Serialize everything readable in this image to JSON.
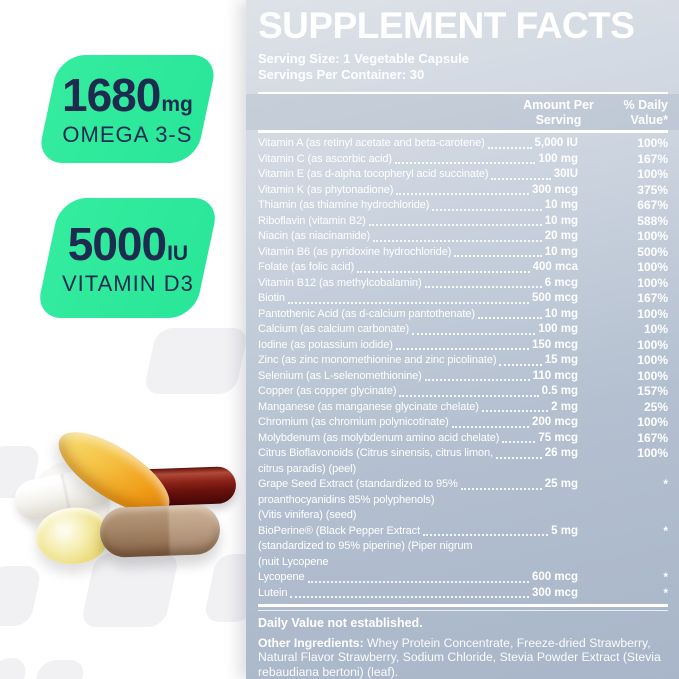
{
  "badges": [
    {
      "value": "1680",
      "unit": "mg",
      "label": "OMEGA 3-S"
    },
    {
      "value": "5000",
      "unit": "IU",
      "label": "VITAMIN D3"
    }
  ],
  "panel": {
    "title": "SUPPLEMENT FACTS",
    "serving_size": "Serving Size: 1 Vegetable Capsule",
    "servings_per_container": "Servings Per Container: 30",
    "columns": {
      "amount": "Amount Per Serving",
      "daily": "% Daily Value*"
    },
    "rows": [
      {
        "name": "Vitamin A (as retinyl acetate and beta-carotene)",
        "amount": "5,000 IU",
        "pct": "100%"
      },
      {
        "name": "Vitamin C (as ascorbic acid)",
        "amount": "100 mg",
        "pct": "167%"
      },
      {
        "name": "Vitamin E (as d-alpha tocopheryl acid succinate)",
        "amount": "30IU",
        "pct": "100%"
      },
      {
        "name": "Vitamin K (as phytonadione)",
        "amount": "300 mcg",
        "pct": "375%"
      },
      {
        "name": "Thiamin (as thiamine hydrochloride)",
        "amount": "10 mg",
        "pct": "667%"
      },
      {
        "name": "Riboflavin (vitamin B2)",
        "amount": "10 mg",
        "pct": "588%"
      },
      {
        "name": "Niacin (as niacinamide)",
        "amount": "20 mg",
        "pct": "100%"
      },
      {
        "name": "Vitamin B6 (as pyridoxine hydrochloride)",
        "amount": "10 mg",
        "pct": "500%"
      },
      {
        "name": "Folate (as folic acid)",
        "amount": "400 mca",
        "pct": "100%"
      },
      {
        "name": "Vitamin B12 (as methylcobalamin)",
        "amount": "6 mcg",
        "pct": "100%"
      },
      {
        "name": "Biotin",
        "amount": "500 mcg",
        "pct": "167%"
      },
      {
        "name": "Pantothenic Acid (as d-calcium pantothenate)",
        "amount": "10 mg",
        "pct": "100%"
      },
      {
        "name": "Calcium (as calcium carbonate)",
        "amount": "100 mg",
        "pct": "10%"
      },
      {
        "name": "Iodine (as potassium iodide)",
        "amount": "150 mcg",
        "pct": "100%"
      },
      {
        "name": "Zinc (as zinc monomethionine and zinc picolinate)",
        "amount": "15 mg",
        "pct": "100%"
      },
      {
        "name": "Selenium (as L-selenomethionine)",
        "amount": "110 mcg",
        "pct": "100%"
      },
      {
        "name": "Copper (as copper glycinate)",
        "amount": "0.5 mg",
        "pct": "157%"
      },
      {
        "name": "Manganese (as manganese glycinate chelate)",
        "amount": "2 mg",
        "pct": "25%"
      },
      {
        "name": "Chromium (as chromium polynicotinate)",
        "amount": "200 mcg",
        "pct": "100%"
      },
      {
        "name": "Molybdenum (as molybdenum amino acid chelate)",
        "amount": "75 mcg",
        "pct": "167%"
      },
      {
        "name": "Citrus Bioflavonoids (Citrus sinensis, citrus limon,",
        "amount": "26 mg",
        "pct": "100%",
        "extra": [
          "citrus paradis) (peel)"
        ]
      },
      {
        "name": "Grape Seed Extract (standardized to 95%",
        "amount": "25 mg",
        "pct": "*",
        "extra": [
          "proanthocyanidins 85% polyphenols)",
          "(Vitis vinifera) (seed)"
        ]
      },
      {
        "name": "BioPerine® (Black Pepper Extract",
        "amount": "5 mg",
        "pct": "*",
        "extra": [
          "(standardized to 95% piperine) (Piper nigrum",
          "(nuit Lycopene"
        ]
      },
      {
        "name": "Lycopene",
        "amount": "600 mcg",
        "pct": "*"
      },
      {
        "name": "Lutein",
        "amount": "300 mcg",
        "pct": "*"
      }
    ],
    "footnote": "Daily Value not established.",
    "other_ingredients_label": "Other Ingredients:",
    "other_ingredients_text": " Whey Protein Concentrate, Freeze-dried Strawberry, Natural Flavor Strawberry, Sodium Chloride, Stevia Powder Extract (Stevia rebaudiana bertoni) (leaf)."
  },
  "pills_photo": [
    "fish-oil-softgel-large",
    "red-capsule",
    "white-capsule",
    "white-tablet",
    "yellow-softgel-small",
    "brown-capsule"
  ],
  "colors": {
    "badge_green": "#2ee89d",
    "badge_text_navy": "#1d2b4f",
    "panel_text": "#ffffff",
    "panel_gradient_top": "#dee2e8",
    "panel_gradient_bottom": "#a9b6c9",
    "decor_gray": "#f1f1f4"
  }
}
